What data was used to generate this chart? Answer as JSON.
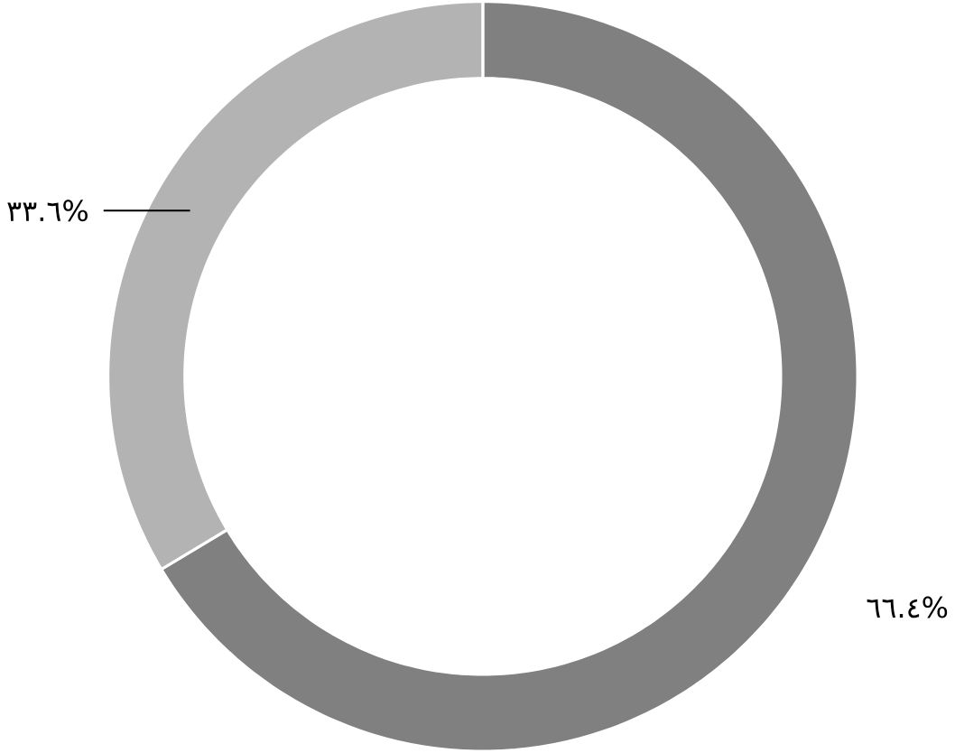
{
  "chart_data": {
    "type": "donut",
    "categories": [
      null,
      null
    ],
    "values": [
      66.4,
      33.6
    ],
    "colors": [
      "#808080",
      "#b3b3b3"
    ],
    "value_labels": [
      "٦٦.٤%",
      "٣٣.٦%"
    ]
  }
}
